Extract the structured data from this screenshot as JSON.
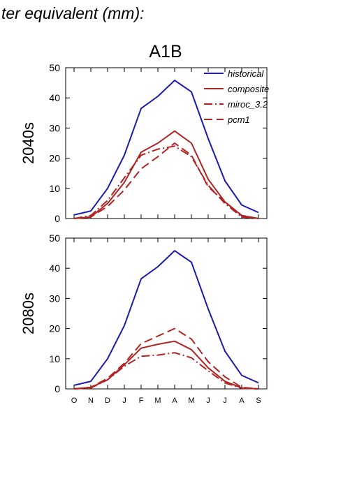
{
  "header": {
    "title": "ter equivalent (mm):"
  },
  "chart_data": {
    "type": "line",
    "title": "A1B",
    "categories": [
      "O",
      "N",
      "D",
      "J",
      "F",
      "M",
      "A",
      "M",
      "J",
      "J",
      "A",
      "S"
    ],
    "ylim": [
      0,
      50
    ],
    "yticks": [
      0,
      10,
      20,
      30,
      40,
      50
    ],
    "legend": {
      "placement": "top-right",
      "entries": [
        {
          "name": "historical",
          "color": "#1a1aad",
          "dash": "solid"
        },
        {
          "name": "composite",
          "color": "#b22222",
          "dash": "solid"
        },
        {
          "name": "miroc_3.2",
          "color": "#b22222",
          "dash": "dashdot"
        },
        {
          "name": "pcm1",
          "color": "#b22222",
          "dash": "dashed"
        }
      ]
    },
    "panels": [
      {
        "ylabel": "2040s",
        "series": [
          {
            "name": "historical",
            "values": [
              1.2,
              2.5,
              10,
              21,
              36.5,
              40.5,
              45.8,
              42,
              26.5,
              12.5,
              4.5,
              2
            ]
          },
          {
            "name": "composite",
            "values": [
              0,
              0.5,
              5,
              12,
              22,
              25,
              29,
              25,
              13,
              5.5,
              1,
              0
            ]
          },
          {
            "name": "miroc_3.2",
            "values": [
              0,
              1,
              6,
              13.5,
              21,
              23,
              24,
              20.5,
              11,
              5,
              0.5,
              0
            ]
          },
          {
            "name": "pcm1",
            "values": [
              0,
              0.5,
              4,
              9.5,
              16.5,
              20.5,
              25,
              21,
              10.5,
              5.5,
              1,
              0
            ]
          }
        ]
      },
      {
        "ylabel": "2080s",
        "series": [
          {
            "name": "historical",
            "values": [
              1.2,
              2.5,
              10,
              21,
              36.5,
              40.5,
              45.8,
              42,
              26.5,
              12.5,
              4.5,
              2
            ]
          },
          {
            "name": "composite",
            "values": [
              0,
              0.5,
              3,
              8,
              13.5,
              14.8,
              15.8,
              13,
              7,
              2.5,
              0.3,
              0
            ]
          },
          {
            "name": "miroc_3.2",
            "values": [
              0,
              0.3,
              3,
              7.5,
              10.8,
              11.2,
              12,
              10.3,
              6,
              2,
              0.2,
              0
            ]
          },
          {
            "name": "pcm1",
            "values": [
              0,
              0.5,
              3.5,
              8.5,
              15,
              17.5,
              20,
              16.5,
              9,
              4,
              0.5,
              0
            ]
          }
        ]
      }
    ]
  }
}
